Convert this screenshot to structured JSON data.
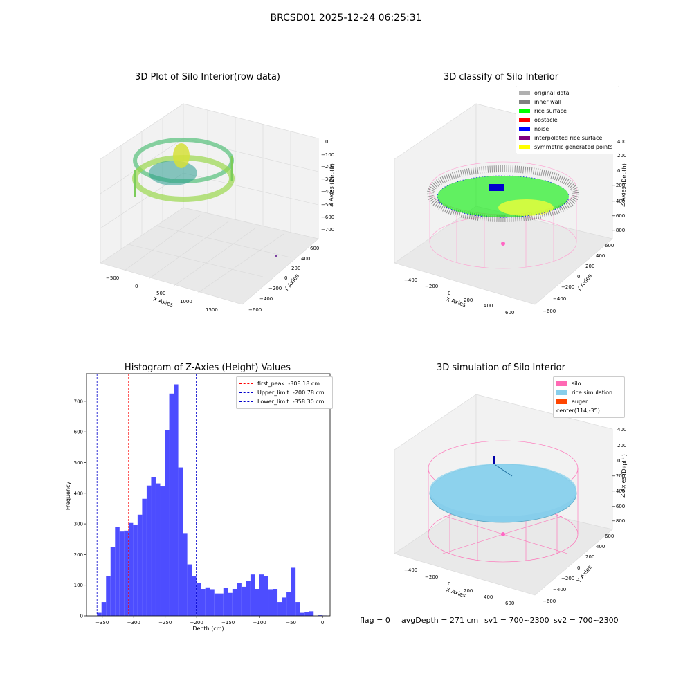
{
  "figure": {
    "suptitle": "BRCSD01 2025-12-24 06:25:31",
    "status": {
      "flag": "flag = 0",
      "avg_depth": "avgDepth = 271 cm",
      "sv1": "sv1 = 700~2300",
      "sv2": "sv2 = 700~2300"
    }
  },
  "colors": {
    "histogram_bar": "#4d4dff",
    "first_peak_line": "#ff0000",
    "limit_lines": "#0000cc",
    "silo_pink": "#ff69b4",
    "rice_blue": "#87ceeb",
    "auger_orange": "#ff4500"
  },
  "panels": {
    "raw": {
      "title": "3D Plot of Silo Interior(row data)",
      "xlabel": "X Axies",
      "ylabel": "Y Axies",
      "zlabel": "Z Axies (Depth)",
      "xticks": [
        "−500",
        "0",
        "500",
        "1000",
        "1500"
      ],
      "yticks": [
        "600",
        "400",
        "200",
        "0",
        "−200",
        "−400",
        "−600"
      ],
      "zticks": [
        "0",
        "−100",
        "−200",
        "−300",
        "−400",
        "−500",
        "−600",
        "−700"
      ]
    },
    "classify": {
      "title": "3D classify of Silo Interior",
      "xlabel": "X Axies",
      "ylabel": "Y Axies",
      "zlabel": "Z Axies (Depth)",
      "xticks": [
        "−400",
        "−200",
        "0",
        "200",
        "400",
        "600"
      ],
      "yticks": [
        "600",
        "400",
        "200",
        "0",
        "−200",
        "−400",
        "−600"
      ],
      "zticks": [
        "400",
        "200",
        "0",
        "−200",
        "−400",
        "−600",
        "−800"
      ],
      "legend": [
        {
          "label": "original data",
          "color": "#b0b0b0"
        },
        {
          "label": "inner wall",
          "color": "#808080"
        },
        {
          "label": "rice surface",
          "color": "#00ff00"
        },
        {
          "label": "obstacle",
          "color": "#ff0000"
        },
        {
          "label": "noise",
          "color": "#0000ff"
        },
        {
          "label": "interpolated rice surface",
          "color": "#800080"
        },
        {
          "label": "symmetric generated points",
          "color": "#ffff00"
        }
      ]
    },
    "simulation": {
      "title": "3D simulation of Silo Interior",
      "xlabel": "X Axies",
      "ylabel": "Y Axies",
      "zlabel": "Z Axies (Depth)",
      "xticks": [
        "−400",
        "−200",
        "0",
        "200",
        "400",
        "600"
      ],
      "yticks": [
        "600",
        "400",
        "200",
        "0",
        "−200",
        "−400",
        "−600"
      ],
      "zticks": [
        "400",
        "200",
        "0",
        "−200",
        "−400",
        "−600",
        "−800"
      ],
      "legend": [
        {
          "label": "silo",
          "color": "#ff69b4"
        },
        {
          "label": "rice simulation",
          "color": "#87ceeb"
        },
        {
          "label": "auger",
          "color": "#ff4500"
        },
        {
          "label": "center(114,-35)",
          "color": ""
        }
      ]
    }
  },
  "chart_data": [
    {
      "type": "histogram",
      "title": "Histogram of Z-Axies (Height) Values",
      "xlabel": "Depth (cm)",
      "ylabel": "Frequency",
      "xlim": [
        -375,
        12
      ],
      "ylim": [
        0,
        790
      ],
      "xticks": [
        -350,
        -300,
        -250,
        -200,
        -150,
        -100,
        -50,
        0
      ],
      "yticks": [
        0,
        100,
        200,
        300,
        400,
        500,
        600,
        700
      ],
      "xtick_labels": [
        "−350",
        "−300",
        "−250",
        "−200",
        "−150",
        "−100",
        "−50",
        "0"
      ],
      "ytick_labels": [
        "0",
        "100",
        "200",
        "300",
        "400",
        "500",
        "600",
        "700"
      ],
      "bin_start": -358.3,
      "bin_width": 7.17,
      "counts": [
        10,
        45,
        130,
        225,
        290,
        275,
        278,
        303,
        298,
        330,
        382,
        425,
        453,
        432,
        422,
        607,
        725,
        755,
        484,
        270,
        168,
        130,
        108,
        88,
        93,
        87,
        73,
        73,
        92,
        75,
        88,
        108,
        95,
        115,
        135,
        88,
        135,
        130,
        87,
        88,
        45,
        60,
        78,
        157,
        45,
        10,
        13,
        15,
        0,
        2,
        1
      ],
      "vlines": [
        {
          "label": "first_peak: -308.18 cm",
          "x": -308.18,
          "color": "#ff0000"
        },
        {
          "label": "Upper_limit: -200.78 cm",
          "x": -200.78,
          "color": "#0000cc"
        },
        {
          "label": "Lower_limit: -358.30 cm",
          "x": -358.3,
          "color": "#0000cc"
        }
      ],
      "grid": false,
      "legend_position": "top-right"
    }
  ]
}
